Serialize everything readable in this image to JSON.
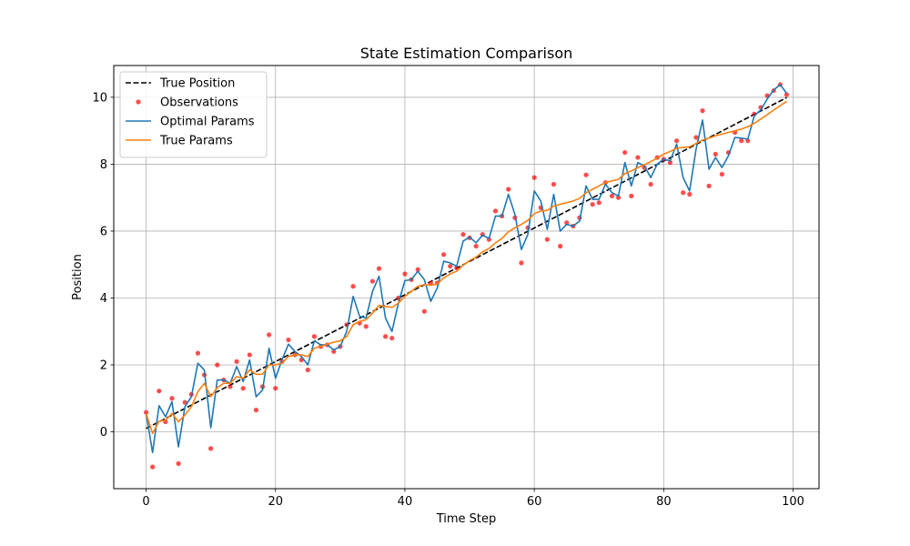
{
  "chart_data": {
    "type": "line",
    "title": "State Estimation Comparison",
    "xlabel": "Time Step",
    "ylabel": "Position",
    "xlim": [
      -5,
      104
    ],
    "ylim": [
      -1.7,
      10.95
    ],
    "xticks": [
      0,
      20,
      40,
      60,
      80,
      100
    ],
    "yticks": [
      0,
      2,
      4,
      6,
      8,
      10
    ],
    "grid": true,
    "legend_position": "top-left",
    "series": [
      {
        "name": "True Position",
        "kind": "dashed-line",
        "color": "#000000",
        "x": [
          0,
          99
        ],
        "y": [
          0.1,
          9.99
        ]
      },
      {
        "name": "Observations",
        "kind": "scatter",
        "color": "#ff0000",
        "x": [
          0,
          1,
          2,
          3,
          4,
          5,
          6,
          7,
          8,
          9,
          10,
          11,
          12,
          13,
          14,
          15,
          16,
          17,
          18,
          19,
          20,
          21,
          22,
          23,
          24,
          25,
          26,
          27,
          28,
          29,
          30,
          31,
          32,
          33,
          34,
          35,
          36,
          37,
          38,
          39,
          40,
          41,
          42,
          43,
          44,
          45,
          46,
          47,
          48,
          49,
          50,
          51,
          52,
          53,
          54,
          55,
          56,
          57,
          58,
          59,
          60,
          61,
          62,
          63,
          64,
          65,
          66,
          67,
          68,
          69,
          70,
          71,
          72,
          73,
          74,
          75,
          76,
          77,
          78,
          79,
          80,
          81,
          82,
          83,
          84,
          85,
          86,
          87,
          88,
          89,
          90,
          91,
          92,
          93,
          94,
          95,
          96,
          97,
          98,
          99
        ],
        "y": [
          0.58,
          -1.05,
          1.22,
          0.3,
          1.0,
          -0.95,
          0.88,
          1.12,
          2.35,
          1.7,
          -0.5,
          2.0,
          1.55,
          1.35,
          2.1,
          1.3,
          2.3,
          0.65,
          1.35,
          2.9,
          1.3,
          2.1,
          2.75,
          2.3,
          2.15,
          1.85,
          2.85,
          2.55,
          2.6,
          2.4,
          2.55,
          3.2,
          4.35,
          3.25,
          3.15,
          4.5,
          4.88,
          2.85,
          2.8,
          4.0,
          4.72,
          4.55,
          4.85,
          3.6,
          4.45,
          4.45,
          5.3,
          4.95,
          4.9,
          5.9,
          5.8,
          5.55,
          5.9,
          5.75,
          6.6,
          6.45,
          7.25,
          6.4,
          5.05,
          6.1,
          7.6,
          6.7,
          5.75,
          7.4,
          5.55,
          6.25,
          6.15,
          6.4,
          7.68,
          6.8,
          6.85,
          7.45,
          7.05,
          7.0,
          8.35,
          7.05,
          8.2,
          7.9,
          7.4,
          8.2,
          8.15,
          8.05,
          8.7,
          7.15,
          7.1,
          8.8,
          9.6,
          7.35,
          8.3,
          7.7,
          8.35,
          8.95,
          8.7,
          8.7,
          9.5,
          9.7,
          10.05,
          10.2,
          10.38,
          10.08
        ]
      },
      {
        "name": "Optimal Params",
        "kind": "line",
        "color": "#1f77b4",
        "x": [
          0,
          1,
          2,
          3,
          4,
          5,
          6,
          7,
          8,
          9,
          10,
          11,
          12,
          13,
          14,
          15,
          16,
          17,
          18,
          19,
          20,
          21,
          22,
          23,
          24,
          25,
          26,
          27,
          28,
          29,
          30,
          31,
          32,
          33,
          34,
          35,
          36,
          37,
          38,
          39,
          40,
          41,
          42,
          43,
          44,
          45,
          46,
          47,
          48,
          49,
          50,
          51,
          52,
          53,
          54,
          55,
          56,
          57,
          58,
          59,
          60,
          61,
          62,
          63,
          64,
          65,
          66,
          67,
          68,
          69,
          70,
          71,
          72,
          73,
          74,
          75,
          76,
          77,
          78,
          79,
          80,
          81,
          82,
          83,
          84,
          85,
          86,
          87,
          88,
          89,
          90,
          91,
          92,
          93,
          94,
          95,
          96,
          97,
          98,
          99
        ],
        "y": [
          0.55,
          -0.62,
          0.78,
          0.45,
          0.9,
          -0.45,
          0.75,
          1.05,
          2.05,
          1.85,
          0.12,
          1.55,
          1.55,
          1.45,
          1.95,
          1.5,
          2.15,
          1.05,
          1.25,
          2.5,
          1.6,
          2.15,
          2.62,
          2.4,
          2.25,
          2.0,
          2.72,
          2.6,
          2.6,
          2.45,
          2.55,
          3.0,
          4.05,
          3.45,
          3.4,
          4.2,
          4.65,
          3.4,
          3.0,
          3.85,
          4.52,
          4.55,
          4.8,
          4.55,
          3.9,
          4.3,
          5.1,
          5.05,
          4.95,
          5.7,
          5.82,
          5.65,
          5.88,
          5.78,
          6.45,
          6.45,
          7.1,
          6.5,
          5.45,
          5.9,
          7.2,
          6.9,
          6.05,
          7.1,
          6.0,
          6.2,
          6.15,
          6.3,
          7.35,
          6.95,
          6.95,
          7.4,
          7.15,
          7.05,
          8.05,
          7.35,
          8.05,
          7.95,
          7.6,
          8.0,
          8.15,
          8.1,
          8.6,
          7.6,
          7.2,
          8.45,
          9.32,
          7.85,
          8.2,
          7.9,
          8.25,
          8.8,
          8.78,
          8.75,
          9.45,
          9.62,
          9.95,
          10.22,
          10.38,
          10.12
        ]
      },
      {
        "name": "True Params",
        "kind": "line",
        "color": "#ff7f0e",
        "x": [
          0,
          1,
          2,
          3,
          4,
          5,
          6,
          7,
          8,
          9,
          10,
          11,
          12,
          13,
          14,
          15,
          16,
          17,
          18,
          19,
          20,
          21,
          22,
          23,
          24,
          25,
          26,
          27,
          28,
          29,
          30,
          31,
          32,
          33,
          34,
          35,
          36,
          37,
          38,
          39,
          40,
          41,
          42,
          43,
          44,
          45,
          46,
          47,
          48,
          49,
          50,
          51,
          52,
          53,
          54,
          55,
          56,
          57,
          58,
          59,
          60,
          61,
          62,
          63,
          64,
          65,
          66,
          67,
          68,
          69,
          70,
          71,
          72,
          73,
          74,
          75,
          76,
          77,
          78,
          79,
          80,
          81,
          82,
          83,
          84,
          85,
          86,
          87,
          88,
          89,
          90,
          91,
          92,
          93,
          94,
          95,
          96,
          97,
          98,
          99
        ],
        "y": [
          0.55,
          -0.05,
          0.32,
          0.35,
          0.55,
          0.3,
          0.5,
          0.75,
          1.2,
          1.45,
          1.05,
          1.32,
          1.45,
          1.45,
          1.65,
          1.6,
          1.85,
          1.72,
          1.72,
          2.0,
          2.0,
          2.05,
          2.25,
          2.3,
          2.3,
          2.25,
          2.5,
          2.55,
          2.62,
          2.68,
          2.72,
          2.85,
          3.2,
          3.3,
          3.35,
          3.55,
          3.78,
          3.75,
          3.72,
          3.85,
          4.05,
          4.2,
          4.35,
          4.4,
          4.38,
          4.42,
          4.6,
          4.72,
          4.8,
          4.98,
          5.12,
          5.22,
          5.38,
          5.48,
          5.65,
          5.78,
          5.98,
          6.1,
          6.2,
          6.32,
          6.52,
          6.6,
          6.62,
          6.75,
          6.8,
          6.85,
          6.9,
          6.98,
          7.15,
          7.25,
          7.35,
          7.45,
          7.5,
          7.55,
          7.72,
          7.8,
          7.9,
          7.98,
          8.08,
          8.18,
          8.3,
          8.38,
          8.48,
          8.5,
          8.52,
          8.62,
          8.72,
          8.78,
          8.85,
          8.9,
          8.95,
          9.0,
          9.05,
          9.12,
          9.22,
          9.35,
          9.48,
          9.62,
          9.75,
          9.88
        ]
      }
    ]
  }
}
